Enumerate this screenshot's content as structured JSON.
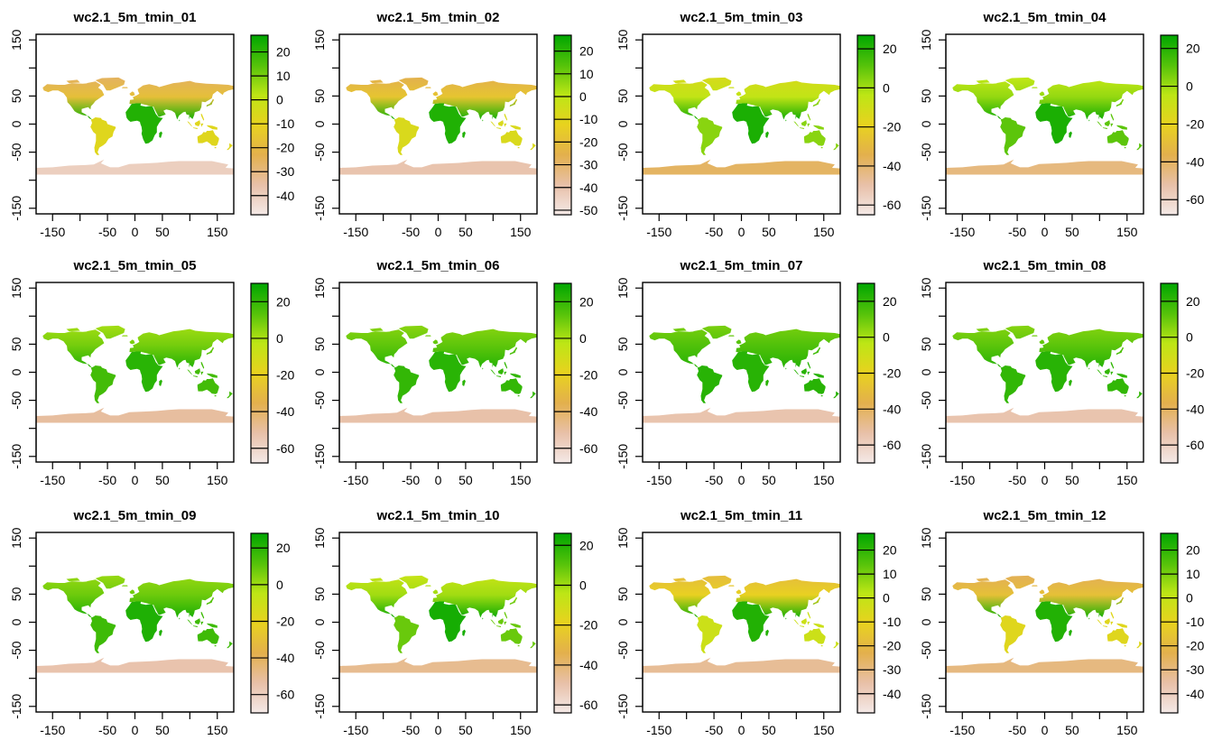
{
  "figure": {
    "panels": [
      {
        "title": "wc2.1_5m_tmin_01",
        "legend_ticks": [
          20,
          10,
          0,
          -10,
          -20,
          -30,
          -40
        ],
        "legend_range": [
          -48,
          27
        ],
        "fill_levels": [
          -25,
          22,
          -20,
          -40
        ]
      },
      {
        "title": "wc2.1_5m_tmin_02",
        "legend_ticks": [
          20,
          10,
          0,
          -10,
          -20,
          -30,
          -40,
          -50
        ],
        "legend_range": [
          -52,
          27
        ],
        "fill_levels": [
          -25,
          22,
          -20,
          -40
        ]
      },
      {
        "title": "wc2.1_5m_tmin_03",
        "legend_ticks": [
          20,
          0,
          -20,
          -40,
          -60
        ],
        "legend_range": [
          -65,
          27
        ],
        "fill_levels": [
          -12,
          22,
          -8,
          -38
        ]
      },
      {
        "title": "wc2.1_5m_tmin_04",
        "legend_ticks": [
          20,
          0,
          -20,
          -40,
          -60
        ],
        "legend_range": [
          -68,
          27
        ],
        "fill_levels": [
          -5,
          22,
          -2,
          -45
        ]
      },
      {
        "title": "wc2.1_5m_tmin_05",
        "legend_ticks": [
          20,
          0,
          -20,
          -40,
          -60
        ],
        "legend_range": [
          -68,
          30
        ],
        "fill_levels": [
          2,
          22,
          5,
          -50
        ]
      },
      {
        "title": "wc2.1_5m_tmin_06",
        "legend_ticks": [
          20,
          0,
          -20,
          -40,
          -60
        ],
        "legend_range": [
          -68,
          30
        ],
        "fill_levels": [
          6,
          22,
          8,
          -52
        ]
      },
      {
        "title": "wc2.1_5m_tmin_07",
        "legend_ticks": [
          20,
          0,
          -20,
          -40,
          -60
        ],
        "legend_range": [
          -70,
          30
        ],
        "fill_levels": [
          8,
          22,
          10,
          -55
        ]
      },
      {
        "title": "wc2.1_5m_tmin_08",
        "legend_ticks": [
          20,
          0,
          -20,
          -40,
          -60
        ],
        "legend_range": [
          -70,
          30
        ],
        "fill_levels": [
          6,
          22,
          8,
          -55
        ]
      },
      {
        "title": "wc2.1_5m_tmin_09",
        "legend_ticks": [
          20,
          0,
          -20,
          -40,
          -60
        ],
        "legend_range": [
          -70,
          28
        ],
        "fill_levels": [
          2,
          22,
          4,
          -55
        ]
      },
      {
        "title": "wc2.1_5m_tmin_10",
        "legend_ticks": [
          20,
          0,
          -20,
          -40,
          -60
        ],
        "legend_range": [
          -64,
          26
        ],
        "fill_levels": [
          -6,
          22,
          -4,
          -45
        ]
      },
      {
        "title": "wc2.1_5m_tmin_11",
        "legend_ticks": [
          20,
          10,
          0,
          -10,
          -20,
          -30,
          -40
        ],
        "legend_range": [
          -48,
          27
        ],
        "fill_levels": [
          -18,
          22,
          -14,
          -33
        ]
      },
      {
        "title": "wc2.1_5m_tmin_12",
        "legend_ticks": [
          20,
          10,
          0,
          -10,
          -20,
          -30,
          -40
        ],
        "legend_range": [
          -48,
          27
        ],
        "fill_levels": [
          -24,
          22,
          -20,
          -30
        ]
      }
    ],
    "x_ticks": [
      -150,
      -100,
      -50,
      0,
      50,
      100,
      150
    ],
    "x_labels": [
      "-150",
      "",
      "-50",
      "0",
      "50",
      "",
      "150"
    ],
    "y_ticks": [
      150,
      100,
      50,
      0,
      -50,
      -100,
      -150
    ],
    "y_labels": [
      "150",
      "",
      "50",
      "0",
      "-50",
      "",
      "-150"
    ],
    "x_range": [
      -180,
      180
    ],
    "y_range": [
      -160,
      160
    ],
    "colors": {
      "background": "#ffffff",
      "ramp": [
        "#f4e9e7",
        "#e8c0a8",
        "#e3b04d",
        "#e8d21f",
        "#bde615",
        "#54c20a",
        "#00a600"
      ]
    }
  }
}
